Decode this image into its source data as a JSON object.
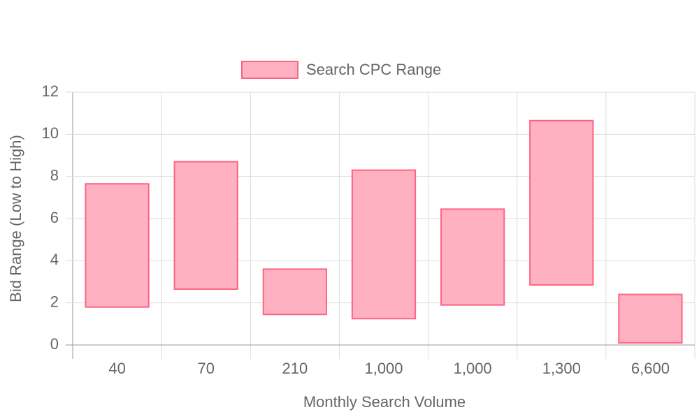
{
  "chart_data": {
    "type": "floating-bar",
    "x_label": "Monthly Search Volume",
    "y_label": "Bid Range (Low to High)",
    "categories": [
      "40",
      "70",
      "210",
      "1,000",
      "1,000",
      "1,300",
      "6,600"
    ],
    "series": [
      {
        "name": "Search CPC Range",
        "color": "#ff6384",
        "fill": "#ffb1c1",
        "low": [
          1.8,
          2.65,
          1.45,
          1.25,
          1.9,
          2.85,
          0.1
        ],
        "high": [
          7.65,
          8.7,
          3.6,
          8.3,
          6.45,
          10.65,
          2.4
        ]
      }
    ],
    "ylim": [
      0,
      12
    ],
    "yticks": [
      0,
      2,
      4,
      6,
      8,
      10,
      12
    ],
    "grid": true,
    "legend": "top"
  }
}
